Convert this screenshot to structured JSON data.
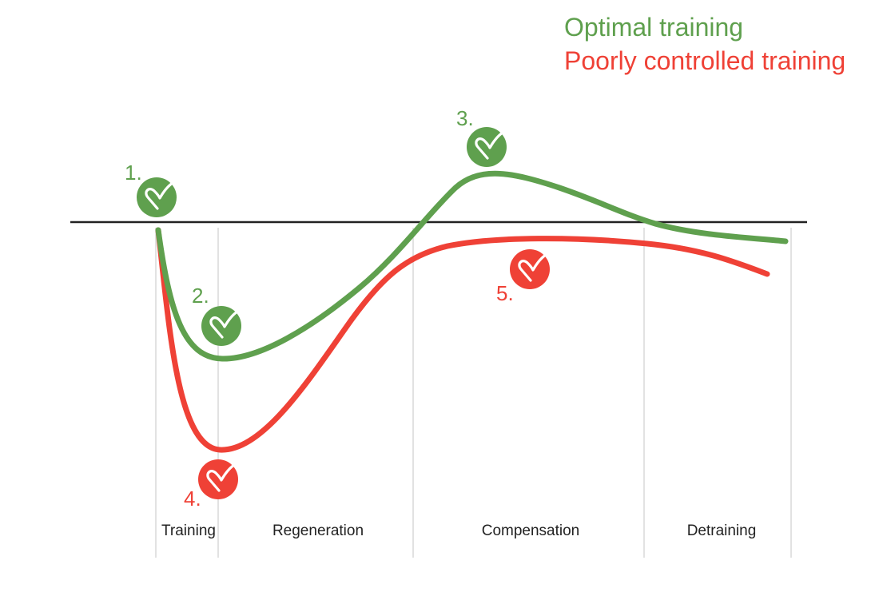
{
  "colors": {
    "optimal": "#5fa04e",
    "poor": "#ef4136",
    "baseline": "#222222",
    "divider": "#d9d9d9",
    "phase_text": "#222222",
    "icon_mark": "#ffffff"
  },
  "legend": {
    "optimal": "Optimal training",
    "poor": "Poorly controlled training"
  },
  "phases": [
    "Training",
    "Regeneration",
    "Compensation",
    "Detraining"
  ],
  "markers": [
    {
      "label": "1.",
      "series": "optimal",
      "icon": "heart-check-icon"
    },
    {
      "label": "2.",
      "series": "optimal",
      "icon": "heart-check-icon"
    },
    {
      "label": "3.",
      "series": "optimal",
      "icon": "heart-check-icon"
    },
    {
      "label": "4.",
      "series": "poor",
      "icon": "heart-check-icon"
    },
    {
      "label": "5.",
      "series": "poor",
      "icon": "heart-check-icon"
    }
  ]
}
